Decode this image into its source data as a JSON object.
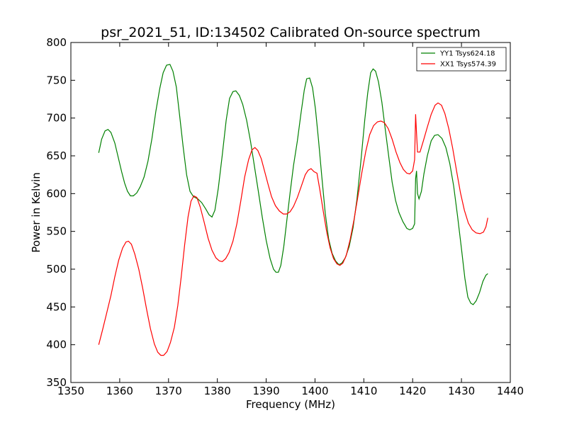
{
  "chart_data": {
    "type": "line",
    "title": "psr_2021_51, ID:134502 Calibrated On-source spectrum",
    "xlabel": "Frequency (MHz)",
    "ylabel": "Power in Kelvin",
    "xlim": [
      1350,
      1440
    ],
    "ylim": [
      350,
      800
    ],
    "xticks": [
      1350,
      1360,
      1370,
      1380,
      1390,
      1400,
      1410,
      1420,
      1430,
      1440
    ],
    "yticks": [
      350,
      400,
      450,
      500,
      550,
      600,
      650,
      700,
      750,
      800
    ],
    "grid": false,
    "legend_position": "top-right",
    "series": [
      {
        "name": "YY1 Tsys624.18",
        "color": "#008000",
        "points": [
          [
            1355.7,
            654
          ],
          [
            1356.3,
            672
          ],
          [
            1357.0,
            683
          ],
          [
            1357.6,
            685
          ],
          [
            1358.2,
            681
          ],
          [
            1359.0,
            667
          ],
          [
            1359.7,
            648
          ],
          [
            1360.4,
            629
          ],
          [
            1361.0,
            614
          ],
          [
            1361.6,
            603
          ],
          [
            1362.2,
            597
          ],
          [
            1362.8,
            597
          ],
          [
            1363.5,
            601
          ],
          [
            1364.2,
            609
          ],
          [
            1365.0,
            622
          ],
          [
            1365.8,
            643
          ],
          [
            1366.6,
            673
          ],
          [
            1367.4,
            709
          ],
          [
            1368.2,
            739
          ],
          [
            1368.9,
            760
          ],
          [
            1369.6,
            770
          ],
          [
            1370.3,
            771
          ],
          [
            1370.9,
            762
          ],
          [
            1371.6,
            741
          ],
          [
            1372.3,
            702
          ],
          [
            1373.0,
            662
          ],
          [
            1373.7,
            625
          ],
          [
            1374.4,
            603
          ],
          [
            1375.1,
            596
          ],
          [
            1376.0,
            593
          ],
          [
            1376.8,
            588
          ],
          [
            1377.6,
            580
          ],
          [
            1378.3,
            572
          ],
          [
            1378.9,
            569
          ],
          [
            1379.5,
            578
          ],
          [
            1380.2,
            607
          ],
          [
            1381.0,
            651
          ],
          [
            1381.8,
            697
          ],
          [
            1382.5,
            726
          ],
          [
            1383.2,
            735
          ],
          [
            1383.8,
            736
          ],
          [
            1384.5,
            730
          ],
          [
            1385.2,
            718
          ],
          [
            1386.0,
            697
          ],
          [
            1386.8,
            669
          ],
          [
            1387.6,
            636
          ],
          [
            1388.4,
            603
          ],
          [
            1389.2,
            569
          ],
          [
            1390.0,
            538
          ],
          [
            1390.8,
            514
          ],
          [
            1391.5,
            500
          ],
          [
            1392.0,
            496
          ],
          [
            1392.5,
            496
          ],
          [
            1393.0,
            505
          ],
          [
            1393.6,
            530
          ],
          [
            1394.2,
            563
          ],
          [
            1394.9,
            601
          ],
          [
            1395.6,
            637
          ],
          [
            1396.4,
            670
          ],
          [
            1397.1,
            705
          ],
          [
            1397.8,
            737
          ],
          [
            1398.3,
            752
          ],
          [
            1398.9,
            753
          ],
          [
            1399.5,
            740
          ],
          [
            1400.1,
            712
          ],
          [
            1400.7,
            672
          ],
          [
            1401.4,
            622
          ],
          [
            1402.1,
            574
          ],
          [
            1402.8,
            540
          ],
          [
            1403.5,
            521
          ],
          [
            1404.2,
            511
          ],
          [
            1404.9,
            506
          ],
          [
            1405.5,
            508
          ],
          [
            1406.2,
            515
          ],
          [
            1407.0,
            530
          ],
          [
            1407.8,
            555
          ],
          [
            1408.6,
            593
          ],
          [
            1409.4,
            643
          ],
          [
            1410.2,
            698
          ],
          [
            1410.8,
            733
          ],
          [
            1411.4,
            760
          ],
          [
            1411.9,
            765
          ],
          [
            1412.4,
            762
          ],
          [
            1413.0,
            748
          ],
          [
            1413.7,
            721
          ],
          [
            1414.4,
            685
          ],
          [
            1415.1,
            649
          ],
          [
            1415.8,
            615
          ],
          [
            1416.5,
            591
          ],
          [
            1417.2,
            575
          ],
          [
            1418.0,
            563
          ],
          [
            1418.8,
            554
          ],
          [
            1419.4,
            552
          ],
          [
            1420.0,
            554
          ],
          [
            1420.4,
            560
          ],
          [
            1420.6,
            620
          ],
          [
            1420.8,
            630
          ],
          [
            1421.0,
            600
          ],
          [
            1421.3,
            593
          ],
          [
            1421.8,
            603
          ],
          [
            1422.3,
            626
          ],
          [
            1423.0,
            650
          ],
          [
            1423.8,
            670
          ],
          [
            1424.5,
            677
          ],
          [
            1425.2,
            678
          ],
          [
            1426.0,
            673
          ],
          [
            1426.8,
            661
          ],
          [
            1427.6,
            640
          ],
          [
            1428.4,
            610
          ],
          [
            1429.2,
            570
          ],
          [
            1430.0,
            527
          ],
          [
            1430.7,
            488
          ],
          [
            1431.3,
            463
          ],
          [
            1431.9,
            455
          ],
          [
            1432.4,
            453
          ],
          [
            1433.0,
            458
          ],
          [
            1433.7,
            469
          ],
          [
            1434.4,
            484
          ],
          [
            1435.0,
            492
          ],
          [
            1435.4,
            494
          ]
        ]
      },
      {
        "name": "XX1 Tsys574.39",
        "color": "#ff0000",
        "points": [
          [
            1355.7,
            400
          ],
          [
            1356.5,
            420
          ],
          [
            1357.3,
            441
          ],
          [
            1358.2,
            465
          ],
          [
            1359.0,
            490
          ],
          [
            1359.8,
            512
          ],
          [
            1360.6,
            528
          ],
          [
            1361.3,
            536
          ],
          [
            1361.8,
            537
          ],
          [
            1362.4,
            533
          ],
          [
            1363.1,
            520
          ],
          [
            1363.9,
            500
          ],
          [
            1364.7,
            475
          ],
          [
            1365.5,
            447
          ],
          [
            1366.3,
            421
          ],
          [
            1367.1,
            401
          ],
          [
            1367.8,
            390
          ],
          [
            1368.4,
            386
          ],
          [
            1369.0,
            386
          ],
          [
            1369.7,
            391
          ],
          [
            1370.4,
            403
          ],
          [
            1371.2,
            423
          ],
          [
            1371.9,
            452
          ],
          [
            1372.6,
            490
          ],
          [
            1373.3,
            532
          ],
          [
            1374.0,
            569
          ],
          [
            1374.6,
            590
          ],
          [
            1375.2,
            597
          ],
          [
            1375.8,
            595
          ],
          [
            1376.5,
            582
          ],
          [
            1377.3,
            562
          ],
          [
            1378.1,
            541
          ],
          [
            1378.9,
            525
          ],
          [
            1379.7,
            515
          ],
          [
            1380.4,
            511
          ],
          [
            1381.0,
            510
          ],
          [
            1381.7,
            514
          ],
          [
            1382.4,
            522
          ],
          [
            1383.2,
            537
          ],
          [
            1384.0,
            560
          ],
          [
            1384.8,
            590
          ],
          [
            1385.6,
            622
          ],
          [
            1386.4,
            645
          ],
          [
            1387.1,
            658
          ],
          [
            1387.7,
            661
          ],
          [
            1388.3,
            657
          ],
          [
            1389.0,
            646
          ],
          [
            1389.7,
            629
          ],
          [
            1390.4,
            612
          ],
          [
            1391.1,
            596
          ],
          [
            1391.9,
            584
          ],
          [
            1392.7,
            577
          ],
          [
            1393.5,
            573
          ],
          [
            1394.2,
            573
          ],
          [
            1394.9,
            576
          ],
          [
            1395.6,
            583
          ],
          [
            1396.4,
            595
          ],
          [
            1397.2,
            610
          ],
          [
            1398.0,
            625
          ],
          [
            1398.6,
            631
          ],
          [
            1399.2,
            633
          ],
          [
            1399.8,
            629
          ],
          [
            1400.4,
            627
          ],
          [
            1401.0,
            605
          ],
          [
            1401.7,
            576
          ],
          [
            1402.4,
            549
          ],
          [
            1403.1,
            528
          ],
          [
            1403.8,
            514
          ],
          [
            1404.5,
            507
          ],
          [
            1405.1,
            505
          ],
          [
            1405.7,
            508
          ],
          [
            1406.4,
            518
          ],
          [
            1407.2,
            539
          ],
          [
            1408.0,
            566
          ],
          [
            1408.8,
            597
          ],
          [
            1409.6,
            628
          ],
          [
            1410.4,
            656
          ],
          [
            1411.2,
            678
          ],
          [
            1412.0,
            690
          ],
          [
            1412.8,
            695
          ],
          [
            1413.5,
            696
          ],
          [
            1414.2,
            694
          ],
          [
            1415.0,
            686
          ],
          [
            1415.8,
            672
          ],
          [
            1416.6,
            655
          ],
          [
            1417.4,
            641
          ],
          [
            1418.1,
            632
          ],
          [
            1418.8,
            627
          ],
          [
            1419.4,
            626
          ],
          [
            1420.0,
            630
          ],
          [
            1420.4,
            645
          ],
          [
            1420.6,
            705
          ],
          [
            1420.8,
            680
          ],
          [
            1421.0,
            655
          ],
          [
            1421.5,
            655
          ],
          [
            1422.2,
            670
          ],
          [
            1423.0,
            688
          ],
          [
            1423.8,
            705
          ],
          [
            1424.6,
            717
          ],
          [
            1425.2,
            720
          ],
          [
            1425.9,
            717
          ],
          [
            1426.6,
            706
          ],
          [
            1427.4,
            686
          ],
          [
            1428.2,
            660
          ],
          [
            1429.0,
            630
          ],
          [
            1429.8,
            601
          ],
          [
            1430.6,
            578
          ],
          [
            1431.4,
            561
          ],
          [
            1432.2,
            552
          ],
          [
            1433.0,
            548
          ],
          [
            1433.8,
            547
          ],
          [
            1434.5,
            549
          ],
          [
            1435.0,
            556
          ],
          [
            1435.4,
            568
          ]
        ]
      }
    ]
  }
}
